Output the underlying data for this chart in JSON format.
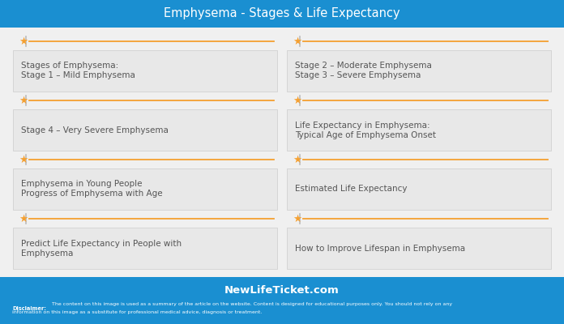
{
  "title": "Emphysema - Stages & Life Expectancy",
  "title_bg": "#1a8fd1",
  "title_color": "#ffffff",
  "footer_bg": "#1a8fd1",
  "footer_site": "NewLifeTicket.com",
  "footer_disclaimer_bold": "Disclaimer:",
  "footer_disclaimer_rest": " The content on this image is used as a summary of the article on the website. Content is designed for educational purposes only. You should not rely on any\ninformation on this image as a substitute for professional medical advice, diagnosis or treatment.",
  "bg_color": "#f0f0f0",
  "card_bg": "#e8e8e8",
  "card_border": "#cccccc",
  "text_color": "#555555",
  "star_color": "#f5a030",
  "line_color": "#f5a030",
  "cards": [
    {
      "col": 0,
      "row": 0,
      "lines": [
        "Stages of Emphysema:",
        "Stage 1 – Mild Emphysema"
      ]
    },
    {
      "col": 1,
      "row": 0,
      "lines": [
        "Stage 2 – Moderate Emphysema",
        "Stage 3 – Severe Emphysema"
      ]
    },
    {
      "col": 0,
      "row": 1,
      "lines": [
        "Stage 4 – Very Severe Emphysema"
      ]
    },
    {
      "col": 1,
      "row": 1,
      "lines": [
        "Life Expectancy in Emphysema:",
        "Typical Age of Emphysema Onset"
      ]
    },
    {
      "col": 0,
      "row": 2,
      "lines": [
        "Emphysema in Young People",
        "Progress of Emphysema with Age"
      ]
    },
    {
      "col": 1,
      "row": 2,
      "lines": [
        "Estimated Life Expectancy"
      ]
    },
    {
      "col": 0,
      "row": 3,
      "lines": [
        "Predict Life Expectancy in People with",
        "Emphysema"
      ]
    },
    {
      "col": 1,
      "row": 3,
      "lines": [
        "How to Improve Lifespan in Emphysema"
      ]
    }
  ]
}
